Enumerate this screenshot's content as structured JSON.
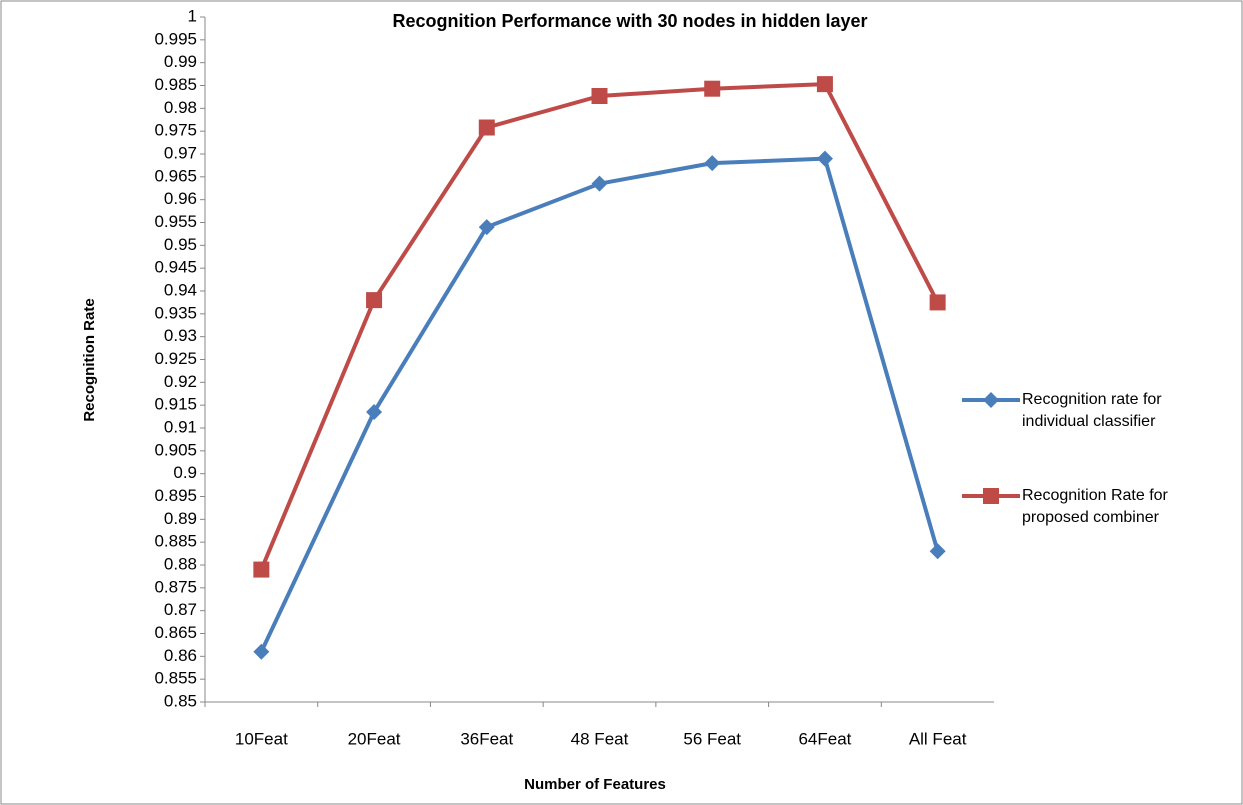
{
  "chart_data": {
    "type": "line",
    "title": "Recognition Performance with 30 nodes  in hidden layer",
    "xlabel": "Number of Features",
    "ylabel": "Recognition Rate",
    "categories": [
      "10Feat",
      "20Feat",
      "36Feat",
      "48 Feat",
      "56 Feat",
      "64Feat",
      "All  Feat"
    ],
    "series": [
      {
        "name": "Recognition rate for individual classifier",
        "color": "#4a7ebb",
        "marker": "diamond",
        "values": [
          0.861,
          0.9135,
          0.954,
          0.9635,
          0.968,
          0.969,
          0.883
        ]
      },
      {
        "name": "Recognition Rate for proposed combiner",
        "color": "#be4b48",
        "marker": "square",
        "values": [
          0.879,
          0.938,
          0.9758,
          0.9827,
          0.9843,
          0.9853,
          0.9375
        ]
      }
    ],
    "ylim": [
      0.85,
      1
    ],
    "yticks": [
      0.85,
      0.855,
      0.86,
      0.865,
      0.87,
      0.875,
      0.88,
      0.885,
      0.89,
      0.895,
      0.9,
      0.905,
      0.91,
      0.915,
      0.92,
      0.925,
      0.93,
      0.935,
      0.94,
      0.945,
      0.95,
      0.955,
      0.96,
      0.965,
      0.97,
      0.975,
      0.98,
      0.985,
      0.99,
      0.995,
      1
    ],
    "grid": false,
    "legend": "right"
  }
}
